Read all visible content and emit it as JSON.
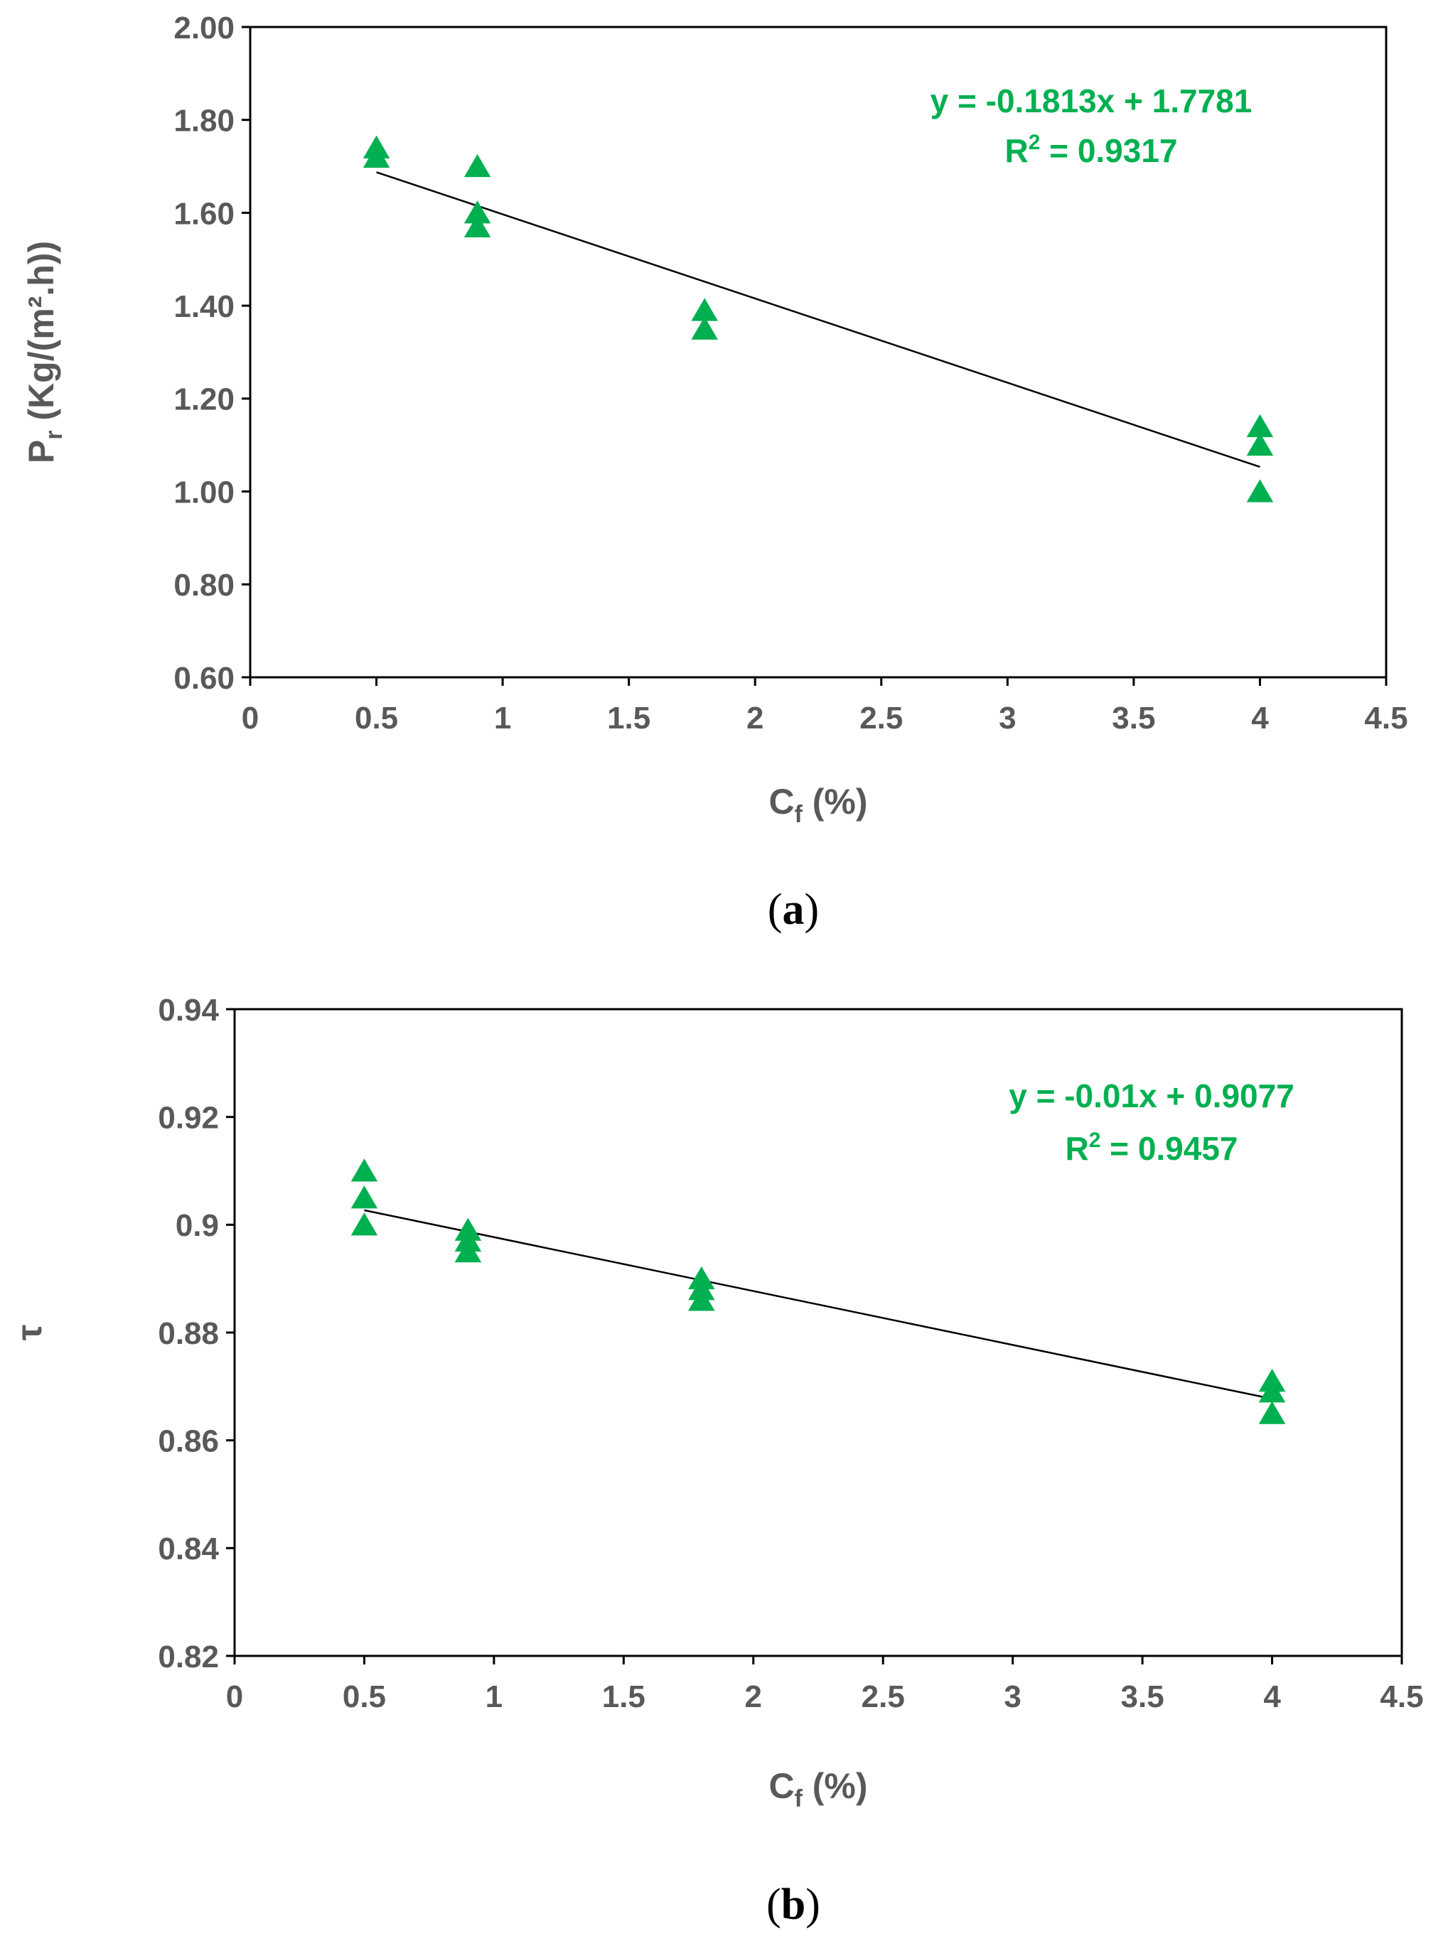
{
  "chart_data": [
    {
      "type": "scatter",
      "panel_label": "(a)",
      "xlabel": "Cf (%)",
      "xlabel_main": "C",
      "xlabel_sub": "f",
      "xlabel_rest": " (%)",
      "ylabel_main": "P",
      "ylabel_sub": "r",
      "ylabel_rest": " (Kg/(m².h))",
      "ylabel": "Pr (Kg/(m².h))",
      "xlim": [
        0,
        4.5
      ],
      "ylim": [
        0.6,
        2.0
      ],
      "xticks": [
        0,
        0.5,
        1,
        1.5,
        2,
        2.5,
        3,
        3.5,
        4,
        4.5
      ],
      "xtick_labels": [
        "0",
        "0.5",
        "1",
        "1.5",
        "2",
        "2.5",
        "3",
        "3.5",
        "4",
        "4.5"
      ],
      "yticks": [
        0.6,
        0.8,
        1.0,
        1.2,
        1.4,
        1.6,
        1.8,
        2.0
      ],
      "ytick_labels": [
        "0.60",
        "0.80",
        "1.00",
        "1.20",
        "1.40",
        "1.60",
        "1.80",
        "2.00"
      ],
      "grid": false,
      "series": [
        {
          "name": "Pr",
          "marker": "triangle",
          "color": "#00B050",
          "points": [
            {
              "x": 0.5,
              "y": 1.74
            },
            {
              "x": 0.5,
              "y": 1.72
            },
            {
              "x": 0.9,
              "y": 1.7
            },
            {
              "x": 0.9,
              "y": 1.6
            },
            {
              "x": 0.9,
              "y": 1.57
            },
            {
              "x": 1.8,
              "y": 1.39
            },
            {
              "x": 1.8,
              "y": 1.35
            },
            {
              "x": 4.0,
              "y": 1.14
            },
            {
              "x": 4.0,
              "y": 1.1
            },
            {
              "x": 4.0,
              "y": 1.0
            }
          ]
        }
      ],
      "trendline": {
        "slope": -0.1813,
        "intercept": 1.7781,
        "x_from": 0.5,
        "x_to": 4.0,
        "color": "#000000"
      },
      "equation_text": "y = -0.1813x + 1.7781",
      "r2_prefix": "R",
      "r2_sup": "2",
      "r2_rest": " = 0.9317",
      "r2_text": "R² = 0.9317"
    },
    {
      "type": "scatter",
      "panel_label": "(b)",
      "xlabel": "Cf (%)",
      "xlabel_main": "C",
      "xlabel_sub": "f",
      "xlabel_rest": " (%)",
      "ylabel": "τ",
      "xlim": [
        0,
        4.5
      ],
      "ylim": [
        0.82,
        0.94
      ],
      "xticks": [
        0,
        0.5,
        1,
        1.5,
        2,
        2.5,
        3,
        3.5,
        4,
        4.5
      ],
      "xtick_labels": [
        "0",
        "0.5",
        "1",
        "1.5",
        "2",
        "2.5",
        "3",
        "3.5",
        "4",
        "4.5"
      ],
      "yticks": [
        0.82,
        0.84,
        0.86,
        0.88,
        0.9,
        0.92,
        0.94
      ],
      "ytick_labels": [
        "0.82",
        "0.84",
        "0.86",
        "0.88",
        "0.9",
        "0.92",
        "0.94"
      ],
      "grid": false,
      "series": [
        {
          "name": "τ",
          "marker": "triangle",
          "color": "#00B050",
          "points": [
            {
              "x": 0.5,
              "y": 0.91
            },
            {
              "x": 0.5,
              "y": 0.905
            },
            {
              "x": 0.5,
              "y": 0.9
            },
            {
              "x": 0.9,
              "y": 0.899
            },
            {
              "x": 0.9,
              "y": 0.897
            },
            {
              "x": 0.9,
              "y": 0.895
            },
            {
              "x": 1.8,
              "y": 0.89
            },
            {
              "x": 1.8,
              "y": 0.888
            },
            {
              "x": 1.8,
              "y": 0.886
            },
            {
              "x": 4.0,
              "y": 0.871
            },
            {
              "x": 4.0,
              "y": 0.869
            },
            {
              "x": 4.0,
              "y": 0.865
            }
          ]
        }
      ],
      "trendline": {
        "slope": -0.01,
        "intercept": 0.9077,
        "x_from": 0.5,
        "x_to": 4.0,
        "color": "#000000"
      },
      "equation_text": "y = -0.01x + 0.9077",
      "r2_prefix": "R",
      "r2_sup": "2",
      "r2_rest": " = 0.9457",
      "r2_text": "R² = 0.9457"
    }
  ]
}
